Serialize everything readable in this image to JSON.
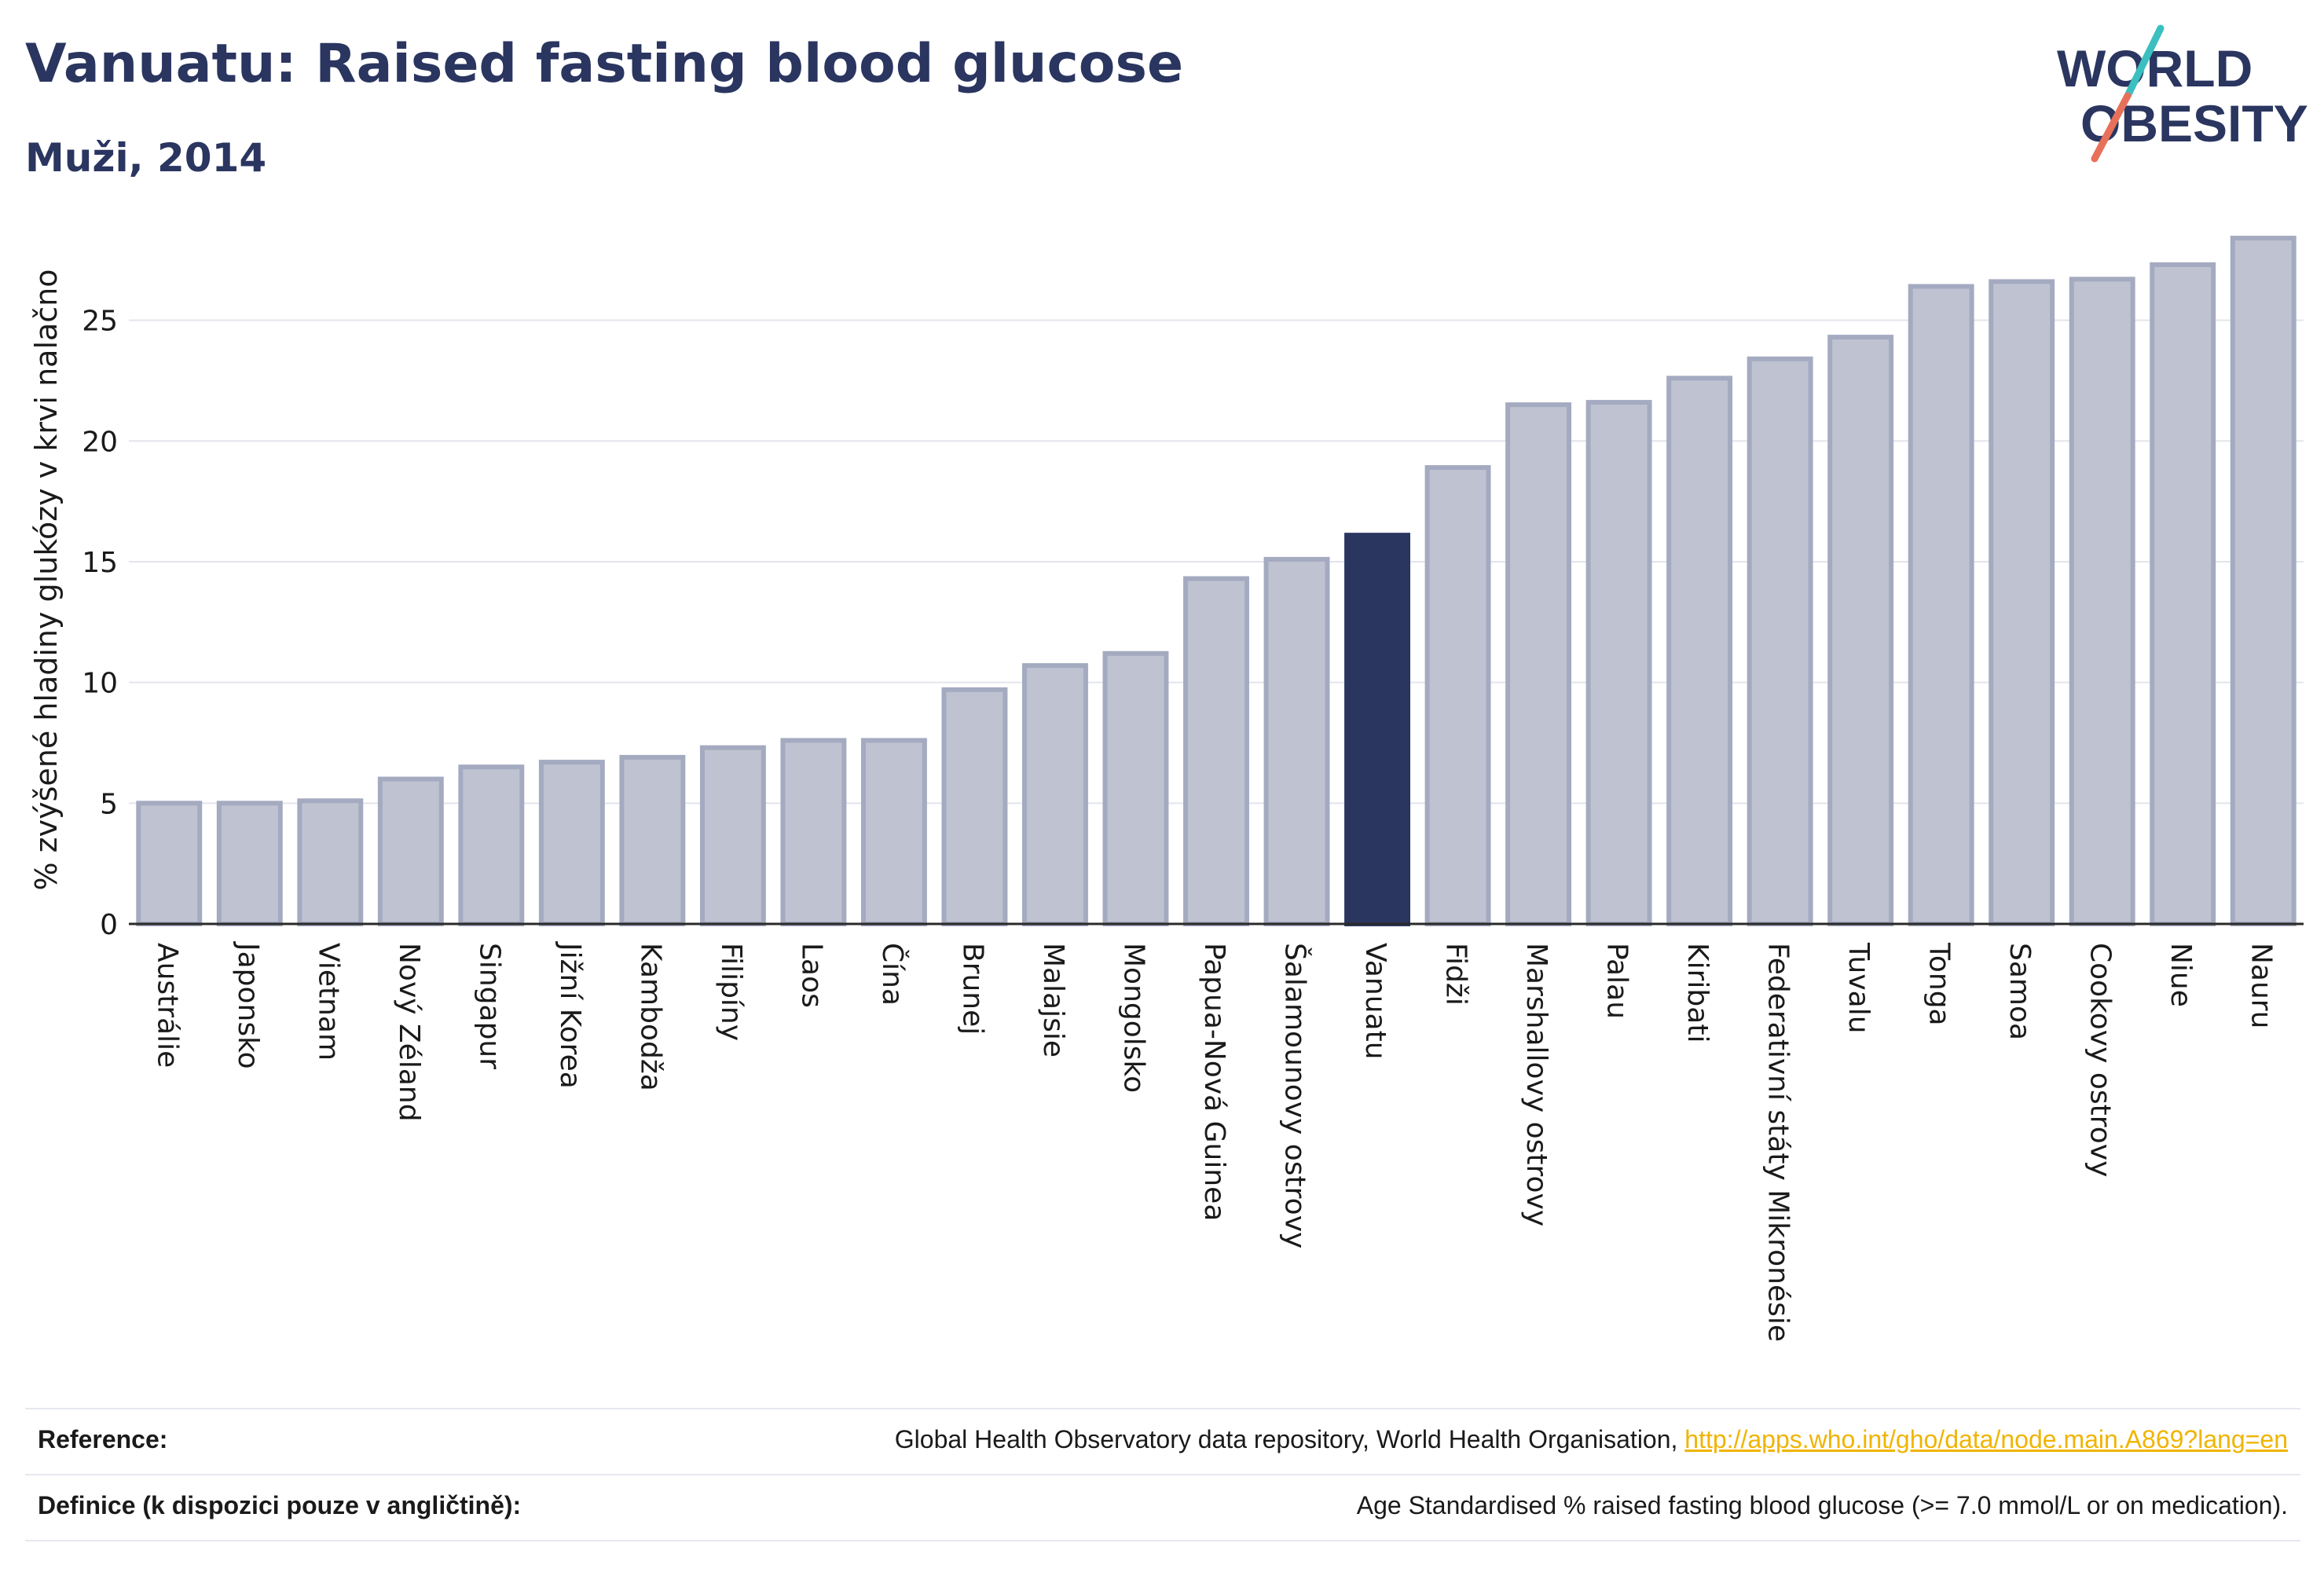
{
  "title": "Vanuatu: Raised fasting blood glucose",
  "subtitle": "Muži, 2014",
  "logo": {
    "line1": "WORLD",
    "line2": "OBESITY"
  },
  "colors": {
    "highlight": "#2a3560",
    "bar_fill": "#bfc3d1",
    "bar_stroke": "#a4aac0",
    "logo_teal": "#3bbfbf",
    "logo_coral": "#e8705a",
    "link": "#f0b400"
  },
  "chart_data": {
    "type": "bar",
    "ylabel": "% zvýšené hladiny glukózy v krvi nalačno",
    "ylim": [
      0,
      28.5
    ],
    "yticks": [
      0,
      5,
      10,
      15,
      20,
      25
    ],
    "grid": true,
    "highlight": "Vanuatu",
    "categories": [
      "Austrálie",
      "Japonsko",
      "Vietnam",
      "Nový Zéland",
      "Singapur",
      "Jižní Korea",
      "Kambodža",
      "Filipíny",
      "Laos",
      "Čína",
      "Brunej",
      "Malajsie",
      "Mongolsko",
      "Papua-Nová Guinea",
      "Šalamounovy ostrovy",
      "Vanuatu",
      "Fidži",
      "Marshallovy ostrovy",
      "Palau",
      "Kiribati",
      "Federativní státy Mikronésie",
      "Tuvalu",
      "Tonga",
      "Samoa",
      "Cookovy ostrovy",
      "Niue",
      "Nauru"
    ],
    "values": [
      5.0,
      5.0,
      5.1,
      6.0,
      6.5,
      6.7,
      6.9,
      7.3,
      7.6,
      7.6,
      9.7,
      10.7,
      11.2,
      14.3,
      15.1,
      16.1,
      18.9,
      21.5,
      21.6,
      22.6,
      23.4,
      24.3,
      26.4,
      26.6,
      26.7,
      27.3,
      28.4
    ]
  },
  "reference": {
    "label": "Reference:",
    "text": "Global Health Observatory data repository, World Health Organisation, ",
    "link": "http://apps.who.int/gho/data/node.main.A869?lang=en"
  },
  "definition": {
    "label": "Definice (k dispozici pouze v angličtině):",
    "text": "Age Standardised % raised fasting blood glucose (>= 7.0 mmol/L or on medication)."
  }
}
